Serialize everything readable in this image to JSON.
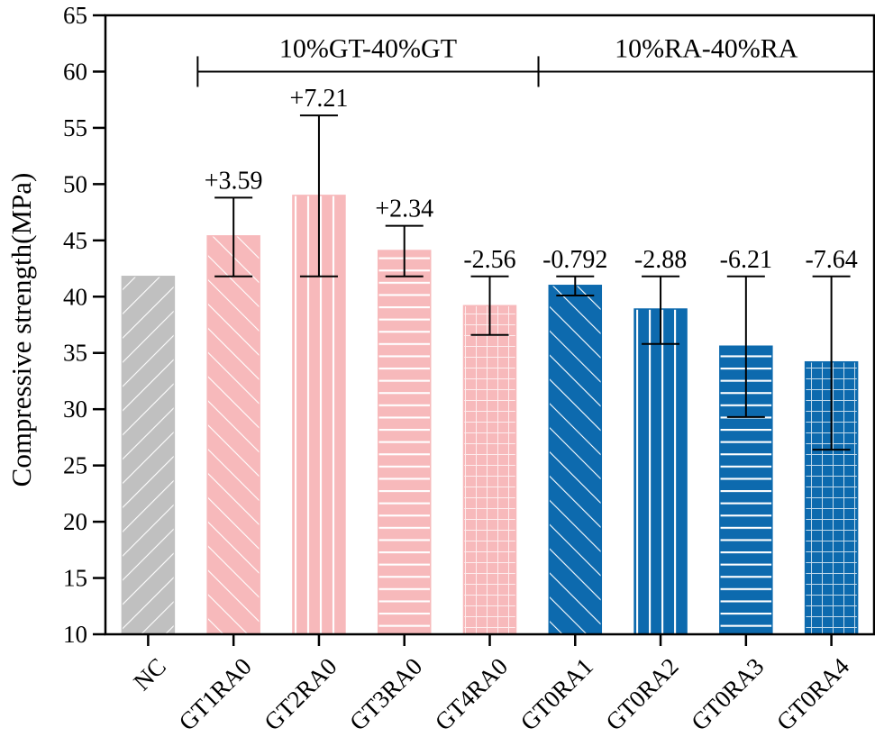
{
  "chart_data": {
    "type": "bar",
    "title": "",
    "xlabel": "",
    "ylabel": "Compressive strength(MPa)",
    "ylim": [
      10,
      65
    ],
    "yticks": [
      10,
      15,
      20,
      25,
      30,
      35,
      40,
      45,
      50,
      55,
      60,
      65
    ],
    "grid": false,
    "categories": [
      "NC",
      "GT1RA0",
      "GT2RA0",
      "GT3RA0",
      "GT4RA0",
      "GT0RA1",
      "GT0RA2",
      "GT0RA3",
      "GT0RA4"
    ],
    "values": [
      41.8,
      45.4,
      49.0,
      44.1,
      39.2,
      41.0,
      38.9,
      35.6,
      34.2
    ],
    "error_bars": [
      null,
      [
        41.8,
        48.8
      ],
      [
        41.8,
        56.1
      ],
      [
        41.8,
        46.3
      ],
      [
        36.6,
        41.8
      ],
      [
        40.1,
        41.8
      ],
      [
        35.8,
        41.8
      ],
      [
        29.3,
        41.8
      ],
      [
        26.4,
        41.8
      ]
    ],
    "data_labels": [
      "",
      "+3.59",
      "+7.21",
      "+2.34",
      "-2.56",
      "-0.792",
      "-2.88",
      "-6.21",
      "-7.64"
    ],
    "bar_colors": [
      "#c0c0c0",
      "#f7b9bb",
      "#f7b9bb",
      "#f7b9bb",
      "#f7b9bb",
      "#0d6aae",
      "#0d6aae",
      "#0d6aae",
      "#0d6aae"
    ],
    "bar_patterns": [
      "diag-up",
      "diag-down",
      "vertical",
      "horizontal",
      "grid",
      "diag-down",
      "vertical",
      "horizontal",
      "grid"
    ],
    "annotations": [
      {
        "text": "10%GT-40%GT",
        "from_category": "GT1RA0",
        "to_category": "GT4RA0",
        "y": 60
      },
      {
        "text": "10%RA-40%RA",
        "from_category": "GT4RA0",
        "to_category": "GT0RA4",
        "y": 60
      }
    ]
  }
}
